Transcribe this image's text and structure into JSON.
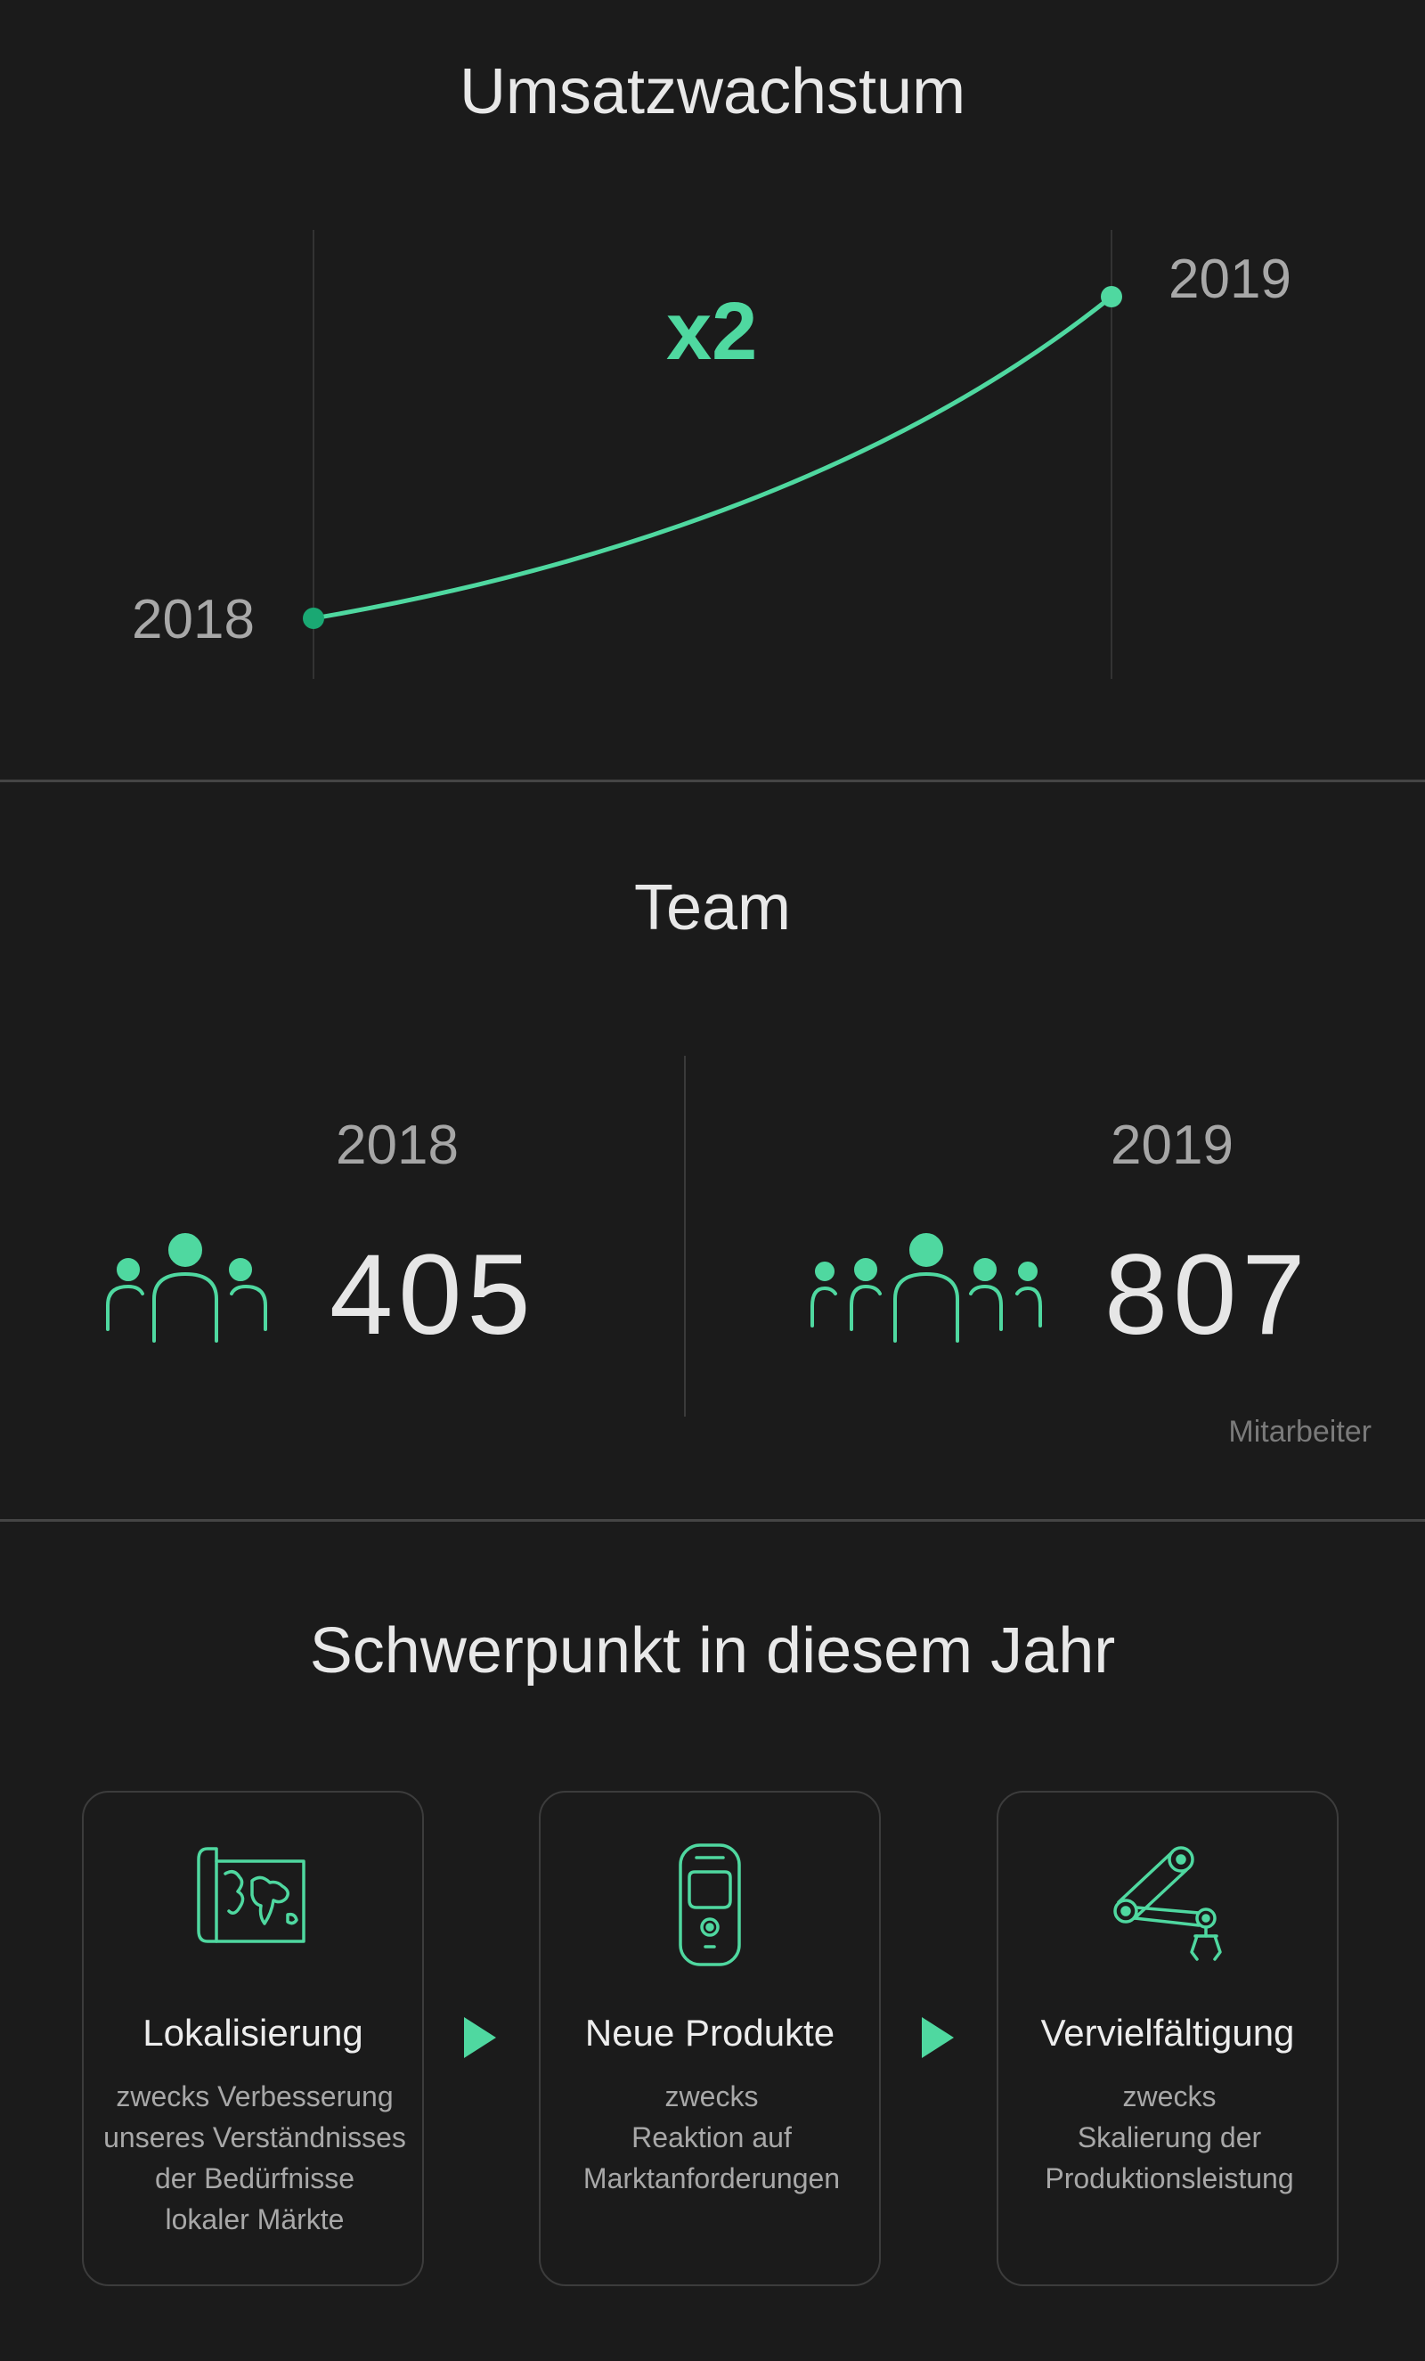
{
  "colors": {
    "background": "#1b1b1b",
    "accent": "#4fd8a0",
    "accent_dark": "#1aa873",
    "text": "#e6e6e6",
    "muted": "#a8a8a8",
    "divider": "#454545"
  },
  "growth": {
    "title": "Umsatzwachstum",
    "multiplier": "x2",
    "start_year": "2018",
    "end_year": "2019"
  },
  "team": {
    "title": "Team",
    "left": {
      "year": "2018",
      "count": "405",
      "icon": "people-group-3-icon"
    },
    "right": {
      "year": "2019",
      "count": "807",
      "icon": "people-group-5-icon"
    },
    "unit": "Mitarbeiter"
  },
  "focus": {
    "title": "Schwerpunkt in diesem Jahr",
    "cards": [
      {
        "icon": "world-map-icon",
        "title": "Lokalisierung",
        "lines": [
          "zwecks Verbesserung",
          "unseres Verständnisses",
          "der Bedürfnisse",
          "lokaler Märkte"
        ]
      },
      {
        "icon": "mobile-device-icon",
        "title": "Neue Produkte",
        "lines": [
          "zwecks",
          "Reaktion auf",
          "Marktanforderungen"
        ]
      },
      {
        "icon": "robot-arm-icon",
        "title": "Vervielfältigung",
        "lines": [
          "zwecks",
          "Skalierung der",
          "Produktionsleistung"
        ]
      }
    ],
    "arrow_icon": "play-arrow-icon"
  }
}
